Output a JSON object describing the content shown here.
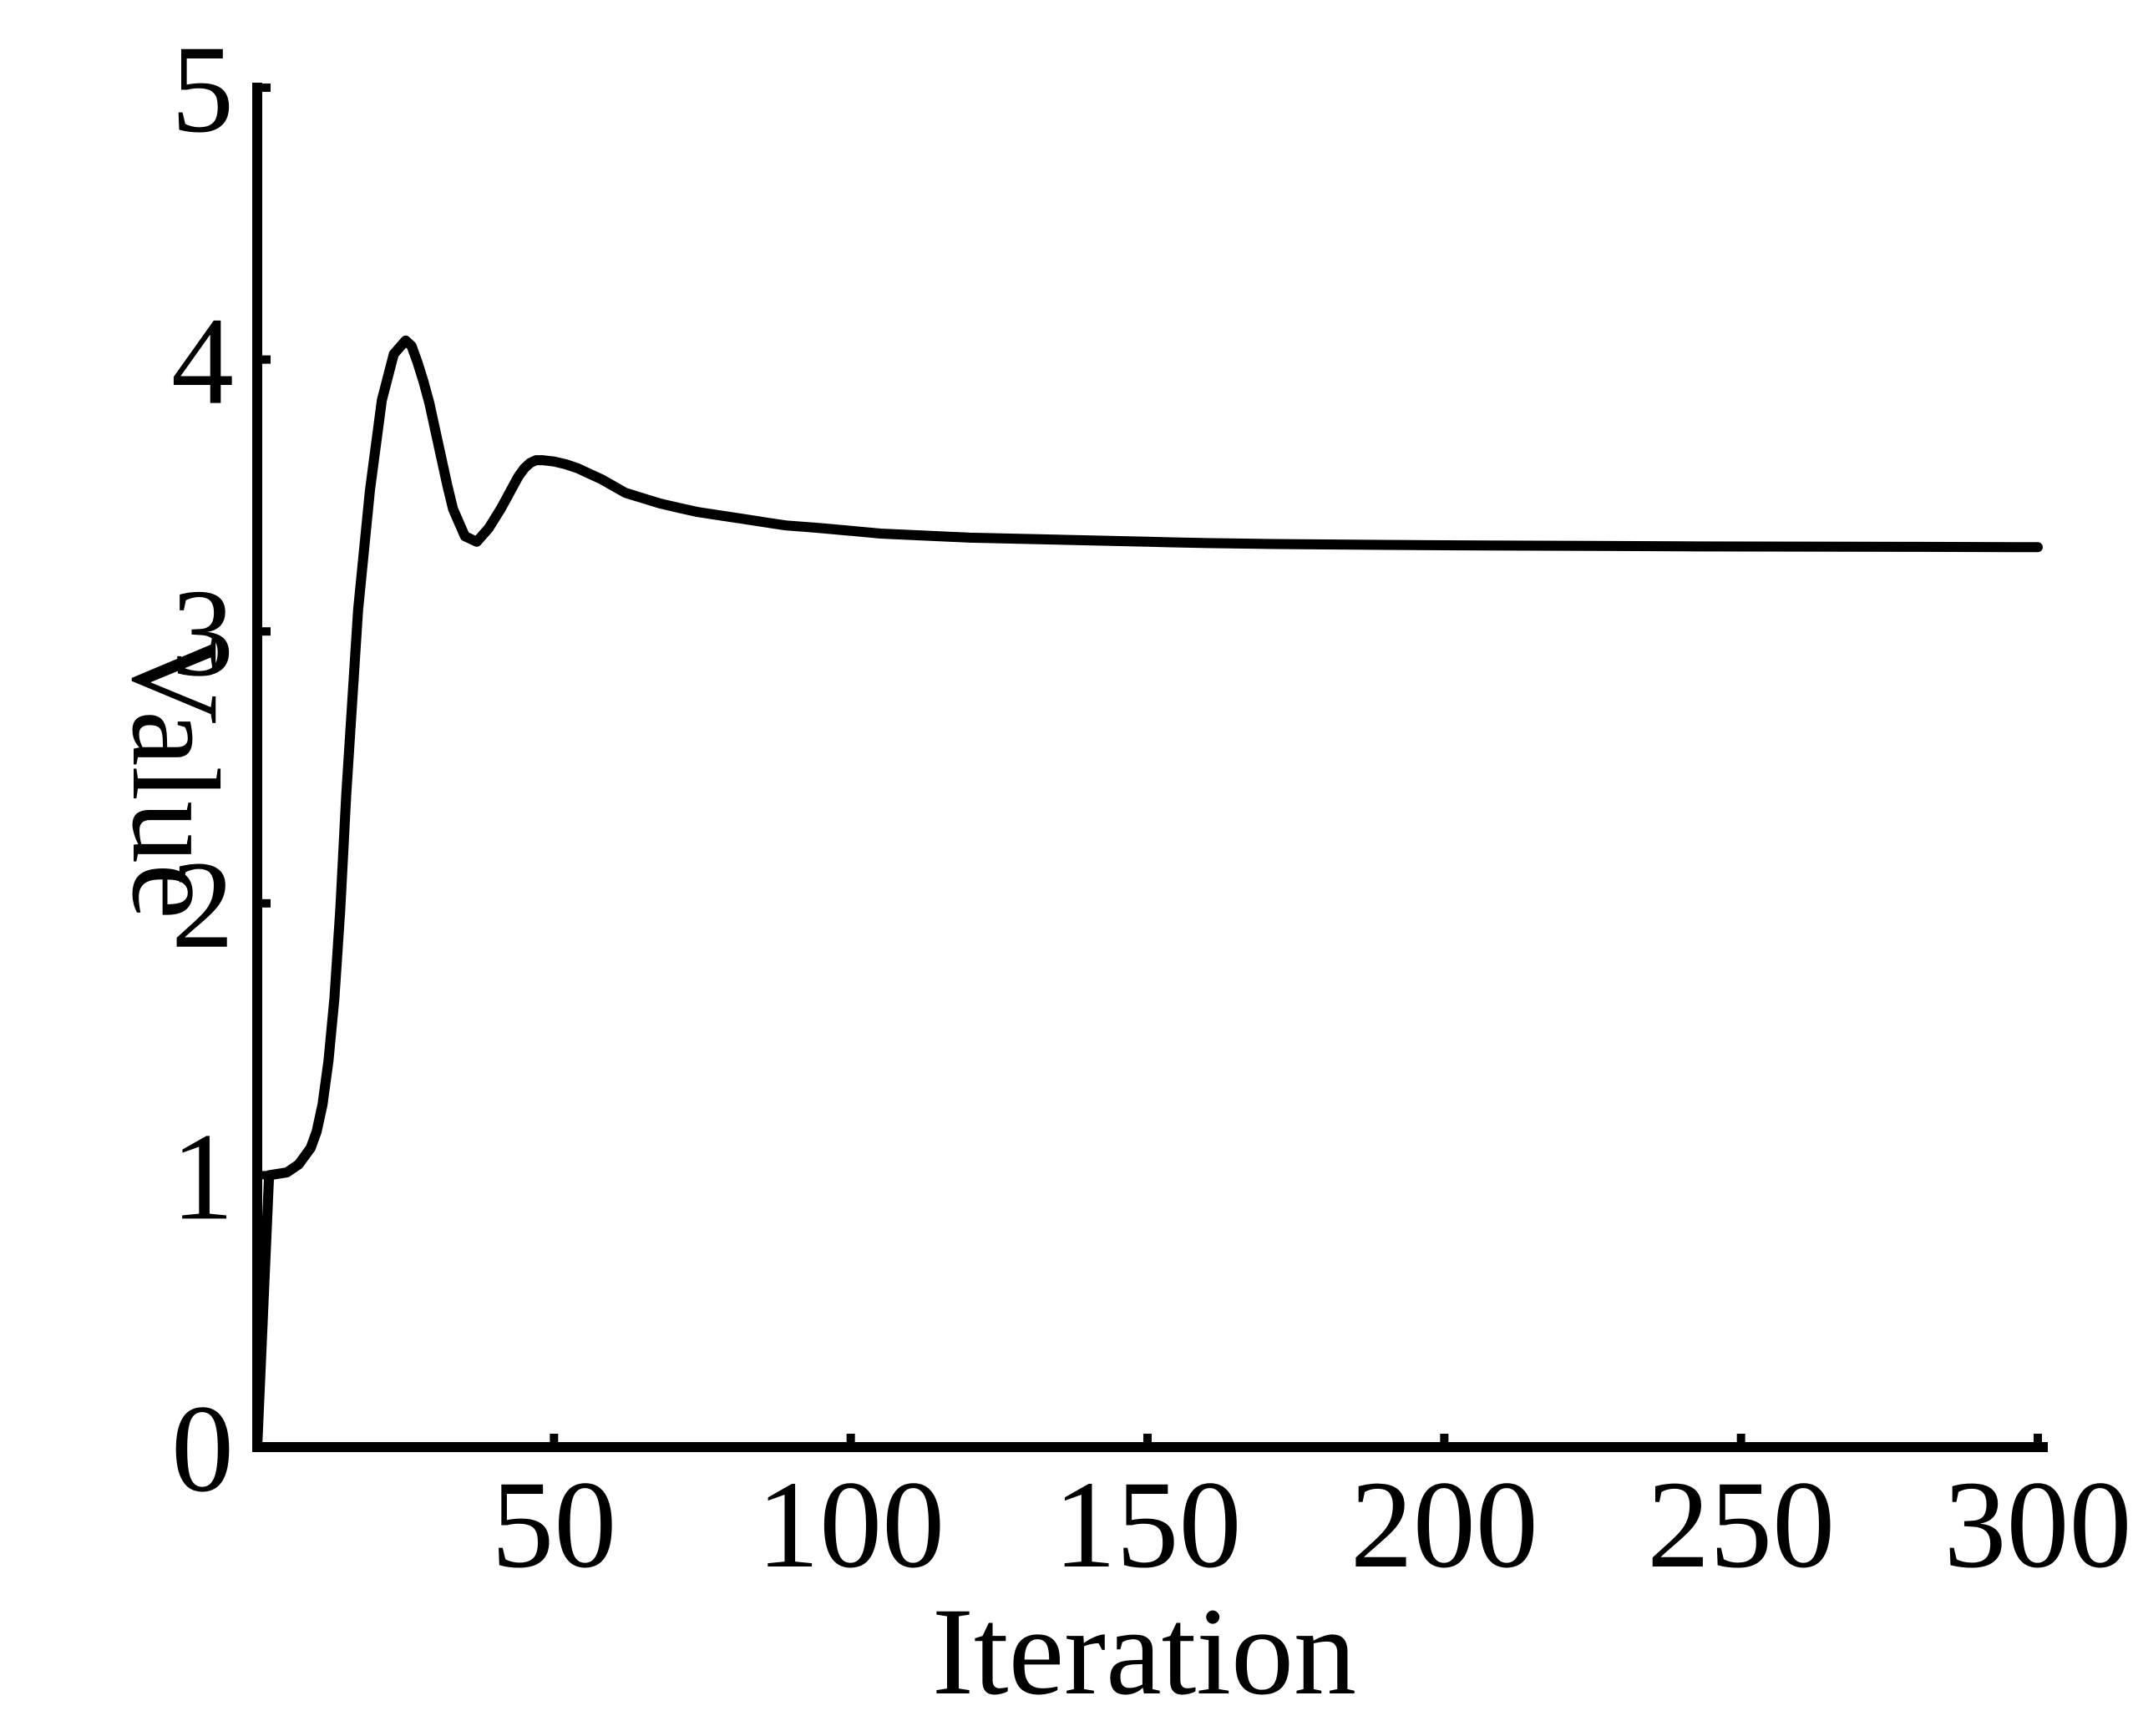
{
  "chart_data": {
    "type": "line",
    "title": "",
    "xlabel": "Iteration",
    "ylabel": "Value",
    "xlim": [
      0,
      300
    ],
    "ylim": [
      0,
      5
    ],
    "xticks": [
      50,
      100,
      150,
      200,
      250,
      300
    ],
    "xtick_labels": [
      "50",
      "100",
      "150",
      "200",
      "250",
      "300"
    ],
    "yticks": [
      0,
      1,
      2,
      3,
      4,
      5
    ],
    "ytick_labels": [
      "0",
      "1",
      "2",
      "3",
      "4",
      "5"
    ],
    "grid": false,
    "series": [
      {
        "name": "Value",
        "color": "#000000",
        "x": [
          0,
          2,
          5,
          7,
          9,
          10,
          11,
          12,
          13,
          14,
          15,
          17,
          19,
          21,
          23,
          25,
          26,
          27,
          28,
          29,
          30,
          31,
          32,
          33,
          35,
          37,
          39,
          41,
          42,
          43,
          44,
          45,
          46,
          47,
          48,
          50,
          52,
          54,
          56,
          58,
          60,
          62,
          65,
          68,
          71,
          74,
          77,
          80,
          83,
          86,
          89,
          92,
          95,
          100,
          105,
          110,
          115,
          120,
          130,
          140,
          150,
          160,
          170,
          180,
          200,
          220,
          240,
          260,
          280,
          300
        ],
        "values": [
          0,
          1.0,
          1.01,
          1.04,
          1.1,
          1.16,
          1.26,
          1.42,
          1.65,
          1.98,
          2.4,
          3.08,
          3.52,
          3.85,
          4.02,
          4.07,
          4.05,
          3.99,
          3.92,
          3.84,
          3.74,
          3.64,
          3.54,
          3.45,
          3.35,
          3.33,
          3.38,
          3.45,
          3.49,
          3.53,
          3.57,
          3.6,
          3.62,
          3.63,
          3.63,
          3.625,
          3.615,
          3.6,
          3.58,
          3.56,
          3.535,
          3.51,
          3.49,
          3.47,
          3.455,
          3.44,
          3.43,
          3.42,
          3.41,
          3.4,
          3.39,
          3.385,
          3.38,
          3.37,
          3.36,
          3.355,
          3.35,
          3.345,
          3.34,
          3.335,
          3.33,
          3.325,
          3.322,
          3.32,
          3.317,
          3.315,
          3.313,
          3.312,
          3.311,
          3.31
        ]
      }
    ]
  }
}
